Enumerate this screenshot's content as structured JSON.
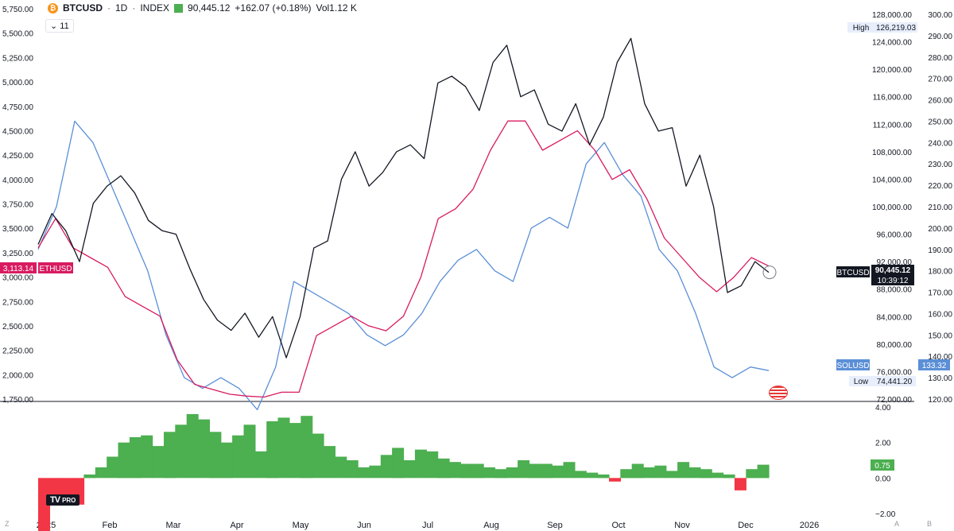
{
  "header": {
    "symbol": "BTCUSD",
    "interval": "1D",
    "exchange": "INDEX",
    "sep": "·",
    "last": "90,445.12",
    "change": "+162.07 (+0.18%)",
    "volume": "Vol1.12 K",
    "indicator_count": "11"
  },
  "colors": {
    "btc": "#131722",
    "eth": "#d81b60",
    "sol": "#5b8fd6",
    "histogram": "#4caf50",
    "histogram_neg": "#f23645",
    "grid": "#f0f3fa",
    "axis_text": "#131722"
  },
  "chart_data": [
    {
      "type": "line",
      "series": [
        {
          "name": "BTCUSD",
          "axis": "middle",
          "values": [
            94500,
            99000,
            96500,
            92000,
            100500,
            103000,
            104500,
            102000,
            98000,
            96500,
            96000,
            91000,
            86500,
            83500,
            82000,
            84500,
            81000,
            84000,
            78000,
            84000,
            94000,
            95000,
            104000,
            108000,
            103000,
            105000,
            108000,
            109000,
            107000,
            118000,
            119000,
            117500,
            114000,
            121000,
            123500,
            116000,
            117000,
            112000,
            111000,
            115000,
            109000,
            113000,
            121000,
            124500,
            115000,
            111000,
            111500,
            103000,
            107500,
            100000,
            87500,
            88500,
            92000,
            90445
          ]
        },
        {
          "name": "ETHUSD",
          "axis": "left",
          "values": [
            3300,
            3600,
            3300,
            3200,
            3100,
            2800,
            2700,
            2600,
            2150,
            1900,
            1850,
            1800,
            1780,
            1770,
            1820,
            1820,
            2400,
            2500,
            2600,
            2500,
            2450,
            2600,
            3000,
            3600,
            3700,
            3900,
            4300,
            4600,
            4600,
            4300,
            4400,
            4500,
            4300,
            4000,
            4100,
            3800,
            3400,
            3200,
            3000,
            2850,
            3000,
            3200,
            3113
          ]
        },
        {
          "name": "SOLUSD",
          "axis": "right",
          "values": [
            190,
            210,
            250,
            240,
            220,
            200,
            180,
            150,
            130,
            125,
            130,
            125,
            115,
            135,
            175,
            170,
            165,
            160,
            150,
            145,
            150,
            160,
            175,
            185,
            190,
            180,
            175,
            200,
            205,
            200,
            230,
            240,
            225,
            215,
            190,
            180,
            160,
            135,
            130,
            135,
            133.32
          ]
        }
      ],
      "x_ticks": [
        "2025",
        "Feb",
        "Mar",
        "Apr",
        "May",
        "Jun",
        "Jul",
        "Aug",
        "Sep",
        "Oct",
        "Nov",
        "Dec",
        "2026"
      ],
      "left_axis": {
        "ticks": [
          "5,750.00",
          "5,500.00",
          "5,250.00",
          "5,000.00",
          "4,750.00",
          "4,500.00",
          "4,250.00",
          "4,000.00",
          "3,750.00",
          "3,500.00",
          "3,250.00",
          "3,000.00",
          "2,750.00",
          "2,500.00",
          "2,250.00",
          "2,000.00",
          "1,750.00"
        ],
        "ylim": [
          1750,
          5750
        ]
      },
      "middle_axis": {
        "ticks": [
          "128,000.00",
          "124,000.00",
          "120,000.00",
          "116,000.00",
          "112,000.00",
          "108,000.00",
          "104,000.00",
          "100,000.00",
          "96,000.00",
          "92,000.00",
          "88,000.00",
          "84,000.00",
          "80,000.00",
          "76,000.00",
          "72,000.00"
        ],
        "ylim": [
          72000,
          128000
        ]
      },
      "right_axis": {
        "ticks": [
          "300.00",
          "290.00",
          "280.00",
          "270.00",
          "260.00",
          "250.00",
          "240.00",
          "230.00",
          "220.00",
          "210.00",
          "200.00",
          "190.00",
          "180.00",
          "170.00",
          "160.00",
          "150.00",
          "140.00",
          "130.00",
          "120.00"
        ],
        "ylim": [
          120,
          300
        ]
      },
      "labels": {
        "high_label": "High",
        "high_value": "126,219.03",
        "low_label": "Low",
        "low_value": "74,441.20",
        "btc_tag": "BTCUSD",
        "btc_price": "90,445.12",
        "btc_countdown": "10:39:12",
        "eth_price": "3,113.14",
        "eth_tag": "ETHUSD",
        "sol_tag": "SOLUSD",
        "sol_price": "133.32"
      }
    },
    {
      "type": "area",
      "name": "",
      "values": [
        -3.5,
        -1.5,
        -1,
        -1.5,
        0.2,
        0.6,
        1.2,
        2,
        2.3,
        2.4,
        1.8,
        2.6,
        3,
        3.6,
        3.3,
        2.6,
        2,
        2.4,
        3.0,
        1.5,
        3.2,
        3.4,
        3.1,
        3.5,
        2.5,
        1.8,
        1.2,
        1.0,
        0.6,
        0.7,
        1.3,
        1.7,
        1.0,
        1.6,
        1.5,
        1.1,
        0.9,
        0.8,
        0.8,
        0.6,
        0.5,
        0.6,
        1.0,
        0.8,
        0.8,
        0.7,
        0.9,
        0.4,
        0.3,
        0.2,
        -0.2,
        0.5,
        0.8,
        0.6,
        0.7,
        0.4,
        0.9,
        0.6,
        0.5,
        0.3,
        0.2,
        -0.7,
        0.5,
        0.75
      ],
      "axis_ticks": [
        "4.00",
        "2.00",
        "0.00",
        "−2.00"
      ],
      "ylim": [
        -2,
        4
      ],
      "last_value": "0.75"
    }
  ],
  "corners": {
    "left": "Z",
    "right_a": "A",
    "right_b": "B"
  },
  "brand": {
    "logo": "TV",
    "tier": "PRO"
  }
}
